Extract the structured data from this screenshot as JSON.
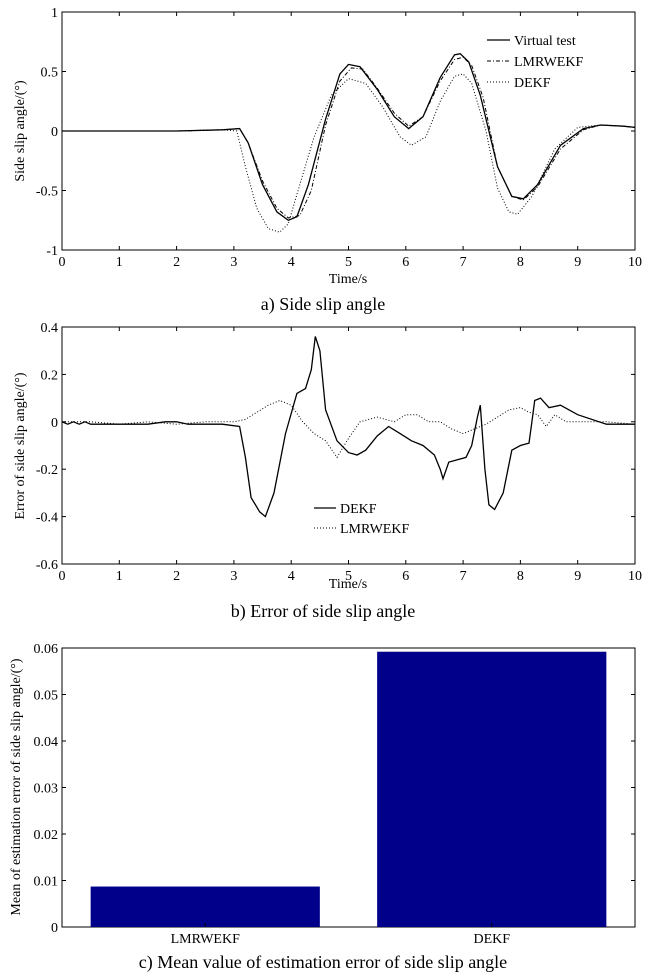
{
  "chart_data": [
    {
      "type": "line",
      "caption": "a) Side slip angle",
      "xlabel": "Time/s",
      "ylabel": "Side slip angle/(°)",
      "xlim": [
        0,
        10
      ],
      "ylim": [
        -1,
        1
      ],
      "xticks": [
        "0",
        "1",
        "2",
        "3",
        "4",
        "5",
        "6",
        "7",
        "8",
        "9",
        "10"
      ],
      "yticks": [
        "1",
        "0.5",
        "0",
        "-0.5",
        "-1"
      ],
      "legend_position": "top-right",
      "series": [
        {
          "name": "Virtual test",
          "style": "solid",
          "x": [
            0,
            1,
            2,
            2.8,
            3.1,
            3.25,
            3.5,
            3.75,
            3.95,
            4.1,
            4.3,
            4.6,
            4.85,
            5.0,
            5.2,
            5.5,
            5.8,
            6.05,
            6.3,
            6.6,
            6.85,
            6.95,
            7.1,
            7.3,
            7.6,
            7.85,
            8.05,
            8.3,
            8.7,
            9.1,
            9.4,
            9.8,
            10
          ],
          "y": [
            0,
            0,
            0,
            0.01,
            0.02,
            -0.1,
            -0.45,
            -0.68,
            -0.75,
            -0.72,
            -0.45,
            0.1,
            0.48,
            0.56,
            0.54,
            0.35,
            0.12,
            0.02,
            0.12,
            0.45,
            0.64,
            0.65,
            0.58,
            0.3,
            -0.3,
            -0.55,
            -0.57,
            -0.45,
            -0.12,
            0.02,
            0.05,
            0.04,
            0.03
          ]
        },
        {
          "name": "LMRWEKF",
          "style": "dash-dot",
          "x": [
            0,
            1,
            2,
            2.8,
            3.1,
            3.25,
            3.5,
            3.75,
            3.95,
            4.15,
            4.35,
            4.6,
            4.85,
            5.05,
            5.25,
            5.5,
            5.8,
            6.05,
            6.3,
            6.6,
            6.85,
            7.0,
            7.15,
            7.35,
            7.6,
            7.85,
            8.05,
            8.3,
            8.7,
            9.1,
            9.4,
            9.8,
            10
          ],
          "y": [
            0,
            0,
            0,
            0.01,
            0.02,
            -0.1,
            -0.42,
            -0.65,
            -0.73,
            -0.71,
            -0.5,
            0.05,
            0.42,
            0.53,
            0.52,
            0.36,
            0.15,
            0.04,
            0.12,
            0.42,
            0.6,
            0.62,
            0.55,
            0.28,
            -0.3,
            -0.55,
            -0.58,
            -0.47,
            -0.15,
            0.01,
            0.05,
            0.04,
            0.03
          ]
        },
        {
          "name": "DEKF",
          "style": "dotted",
          "x": [
            0,
            1,
            2,
            2.8,
            3.05,
            3.2,
            3.4,
            3.6,
            3.8,
            3.95,
            4.15,
            4.4,
            4.7,
            5.0,
            5.3,
            5.6,
            5.9,
            6.1,
            6.35,
            6.6,
            6.85,
            7.0,
            7.15,
            7.4,
            7.6,
            7.8,
            7.95,
            8.2,
            8.6,
            9.0,
            9.4,
            9.8,
            10
          ],
          "y": [
            0,
            0,
            0,
            0.01,
            0.0,
            -0.3,
            -0.65,
            -0.82,
            -0.85,
            -0.78,
            -0.45,
            -0.05,
            0.3,
            0.44,
            0.4,
            0.2,
            -0.05,
            -0.12,
            -0.05,
            0.25,
            0.46,
            0.48,
            0.4,
            0.0,
            -0.48,
            -0.68,
            -0.7,
            -0.55,
            -0.15,
            0.03,
            0.05,
            0.04,
            0.03
          ]
        }
      ]
    },
    {
      "type": "line",
      "caption": "b) Error of side slip angle",
      "xlabel": "Time/s",
      "ylabel": "Error of side slip angle/(°)",
      "xlim": [
        0,
        10
      ],
      "ylim": [
        -0.6,
        0.4
      ],
      "xticks": [
        "0",
        "1",
        "2",
        "3",
        "4",
        "5",
        "6",
        "7",
        "8",
        "9",
        "10"
      ],
      "yticks": [
        "0.4",
        "0.2",
        "0",
        "-0.2",
        "-0.4",
        "-0.6"
      ],
      "legend_position": "bottom-center",
      "series": [
        {
          "name": "DEKF",
          "style": "solid",
          "x": [
            0,
            0.1,
            0.2,
            0.3,
            0.4,
            0.5,
            0.6,
            0.8,
            1.0,
            1.3,
            1.5,
            1.8,
            2.0,
            2.2,
            2.5,
            2.8,
            3.1,
            3.2,
            3.3,
            3.45,
            3.55,
            3.7,
            3.9,
            4.1,
            4.25,
            4.35,
            4.42,
            4.5,
            4.6,
            4.8,
            5.0,
            5.15,
            5.3,
            5.5,
            5.7,
            5.9,
            6.1,
            6.3,
            6.5,
            6.6,
            6.65,
            6.75,
            6.9,
            7.05,
            7.15,
            7.25,
            7.3,
            7.38,
            7.45,
            7.55,
            7.7,
            7.85,
            8.0,
            8.15,
            8.2,
            8.25,
            8.35,
            8.5,
            8.7,
            9.0,
            9.5,
            10
          ],
          "y": [
            0,
            -0.01,
            0.0,
            -0.01,
            0.0,
            -0.01,
            -0.01,
            -0.01,
            -0.01,
            -0.01,
            -0.01,
            0.0,
            0.0,
            -0.01,
            -0.01,
            -0.01,
            -0.02,
            -0.15,
            -0.32,
            -0.38,
            -0.4,
            -0.3,
            -0.05,
            0.12,
            0.14,
            0.22,
            0.36,
            0.3,
            0.05,
            -0.08,
            -0.13,
            -0.14,
            -0.12,
            -0.06,
            -0.02,
            -0.05,
            -0.08,
            -0.1,
            -0.14,
            -0.2,
            -0.24,
            -0.17,
            -0.16,
            -0.15,
            -0.1,
            0.02,
            0.07,
            -0.2,
            -0.35,
            -0.37,
            -0.3,
            -0.12,
            -0.1,
            -0.09,
            0.0,
            0.09,
            0.1,
            0.06,
            0.07,
            0.03,
            -0.01,
            -0.01
          ]
        },
        {
          "name": "LMRWEKF",
          "style": "dotted",
          "x": [
            0,
            0.5,
            1.0,
            1.5,
            2.0,
            2.5,
            3.0,
            3.2,
            3.4,
            3.6,
            3.8,
            4.0,
            4.2,
            4.4,
            4.6,
            4.8,
            5.0,
            5.2,
            5.5,
            5.8,
            6.0,
            6.2,
            6.4,
            6.6,
            6.8,
            7.0,
            7.2,
            7.4,
            7.6,
            7.8,
            8.0,
            8.15,
            8.3,
            8.45,
            8.6,
            8.8,
            9.0,
            9.5,
            10
          ],
          "y": [
            0,
            0,
            -0.01,
            0.0,
            -0.01,
            0.0,
            0.0,
            0.01,
            0.04,
            0.07,
            0.09,
            0.07,
            0.0,
            -0.05,
            -0.08,
            -0.15,
            -0.07,
            0.0,
            0.02,
            0.0,
            0.03,
            0.03,
            0.0,
            0.0,
            -0.03,
            -0.05,
            -0.03,
            -0.01,
            0.02,
            0.05,
            0.06,
            0.04,
            0.03,
            -0.02,
            0.03,
            0.0,
            0.0,
            0.0,
            -0.01
          ]
        }
      ]
    },
    {
      "type": "bar",
      "caption": "c) Mean value of estimation error of side slip angle",
      "ylabel": "Mean of estimation error of side slip angle/(°)",
      "categories": [
        "LMRWEKF",
        "DEKF"
      ],
      "values": [
        0.0087,
        0.0592
      ],
      "ylim": [
        0,
        0.06
      ],
      "yticks": [
        "0.06",
        "0.05",
        "0.04",
        "0.03",
        "0.02",
        "0.01",
        "0"
      ],
      "bar_color": "#00008b"
    }
  ]
}
